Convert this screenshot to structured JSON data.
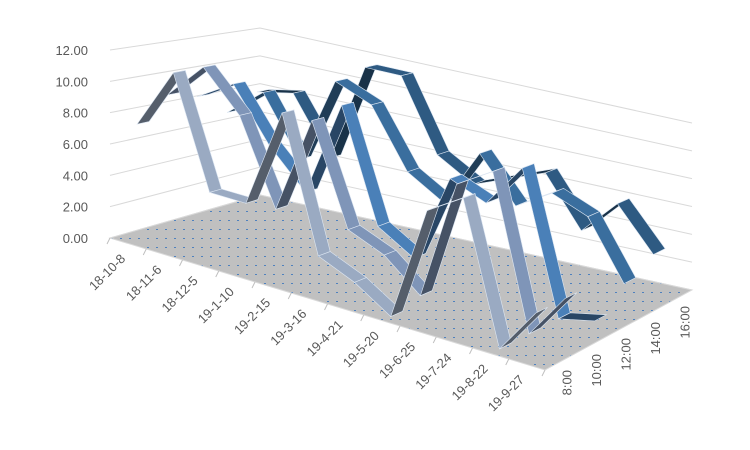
{
  "chart_data": {
    "type": "line",
    "subtype": "3d-line",
    "title": "",
    "categories": [
      "18-10-8",
      "18-11-6",
      "18-12-5",
      "19-1-10",
      "19-2-15",
      "19-3-16",
      "19-4-21",
      "19-5-20",
      "19-6-25",
      "19-7-24",
      "19-8-22",
      "19-9-27"
    ],
    "series": [
      {
        "name": "8:00",
        "color": "#9AAAC2",
        "values": [
          7.5,
          11.5,
          4.5,
          4.5,
          11.0,
          2.5,
          1.5,
          0.0,
          7.5,
          9.0,
          0.0,
          3.0
        ]
      },
      {
        "name": "10:00",
        "color": "#7F95B8",
        "values": [
          9.0,
          11.5,
          9.0,
          3.5,
          10.0,
          3.5,
          2.5,
          0.5,
          8.5,
          10.0,
          0.0,
          3.0
        ]
      },
      {
        "name": "12:00",
        "color": "#4A80B8",
        "values": [
          8.5,
          10.0,
          6.5,
          4.0,
          10.5,
          3.0,
          1.5,
          7.5,
          6.5,
          9.5,
          0.0,
          0.5
        ]
      },
      {
        "name": "14:00",
        "color": "#3A6E9E",
        "values": [
          7.0,
          9.0,
          5.0,
          11.0,
          10.0,
          6.0,
          4.5,
          8.5,
          5.5,
          7.0,
          6.0,
          2.0
        ]
      },
      {
        "name": "16:00",
        "color": "#2E5A82",
        "values": [
          8.0,
          8.5,
          4.5,
          11.5,
          11.5,
          6.5,
          5.0,
          6.0,
          7.0,
          3.5,
          6.0,
          3.0
        ]
      }
    ],
    "depth_labels": [
      "8:00",
      "10:00",
      "12:00",
      "14:00",
      "16:00"
    ],
    "y_ticks": [
      "0.00",
      "2.00",
      "4.00",
      "6.00",
      "8.00",
      "10.00",
      "12.00"
    ],
    "ylim": [
      0,
      12
    ],
    "grid": true,
    "legend": "none",
    "floor_color": "#C0C0C0"
  }
}
